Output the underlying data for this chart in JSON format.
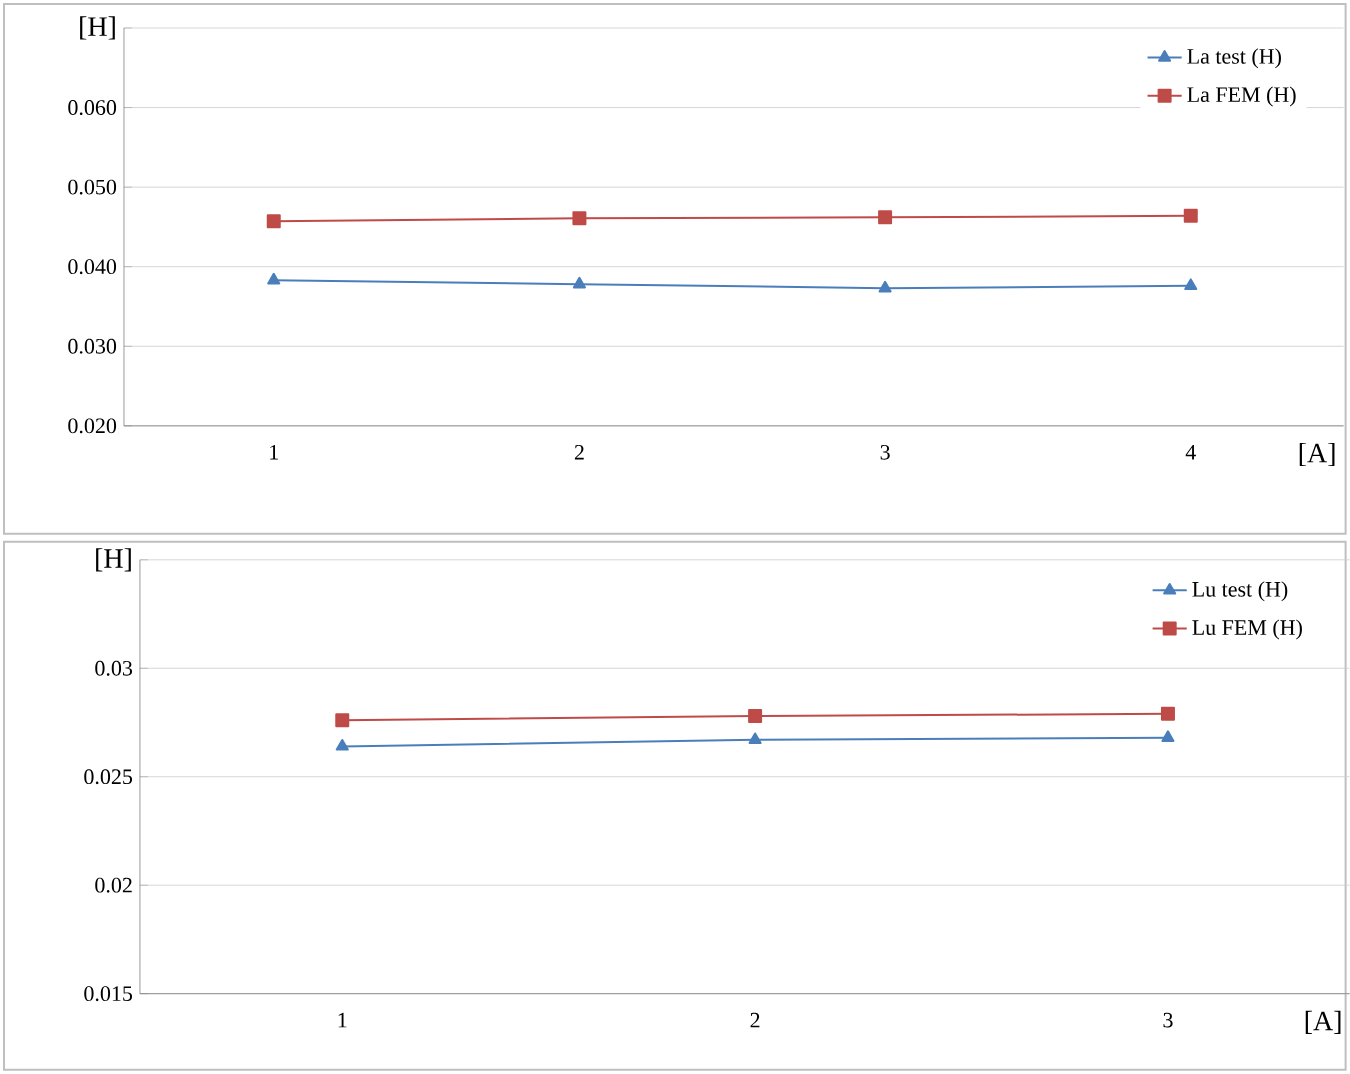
{
  "chart_data": [
    {
      "type": "line",
      "ylabel": "[H]",
      "xlabel": "[A]",
      "categories": [
        "1",
        "2",
        "3",
        "4"
      ],
      "ylim": [
        0.02,
        0.07
      ],
      "yticks": [
        {
          "value": 0.02,
          "label": "0.020"
        },
        {
          "value": 0.03,
          "label": "0.030"
        },
        {
          "value": 0.04,
          "label": "0.040"
        },
        {
          "value": 0.05,
          "label": "0.050"
        },
        {
          "value": 0.06,
          "label": "0.060"
        },
        {
          "value": 0.07,
          "label": null
        }
      ],
      "grid": "y",
      "legend": "top right",
      "series": [
        {
          "name": "La test (H)",
          "color": "#4a7ebb",
          "marker": "triangle",
          "values": [
            0.0383,
            0.0378,
            0.0373,
            0.0376
          ]
        },
        {
          "name": "La FEM (H)",
          "color": "#be4b48",
          "marker": "square",
          "values": [
            0.0457,
            0.0461,
            0.0462,
            0.0464
          ]
        }
      ]
    },
    {
      "type": "line",
      "ylabel": "[H]",
      "xlabel": "[A]",
      "categories": [
        "1",
        "2",
        "3"
      ],
      "ylim": [
        0.015,
        0.035
      ],
      "yticks": [
        0.015,
        0.02,
        0.025,
        0.03,
        {
          "value": 0.035,
          "label": null
        }
      ],
      "grid": "y",
      "legend": "top right",
      "series": [
        {
          "name": "Lu test (H)",
          "color": "#4a7ebb",
          "marker": "triangle",
          "values": [
            0.0264,
            0.0267,
            0.0268
          ]
        },
        {
          "name": "Lu FEM (H)",
          "color": "#be4b48",
          "marker": "square",
          "values": [
            0.0276,
            0.0278,
            0.0279
          ]
        }
      ]
    }
  ]
}
